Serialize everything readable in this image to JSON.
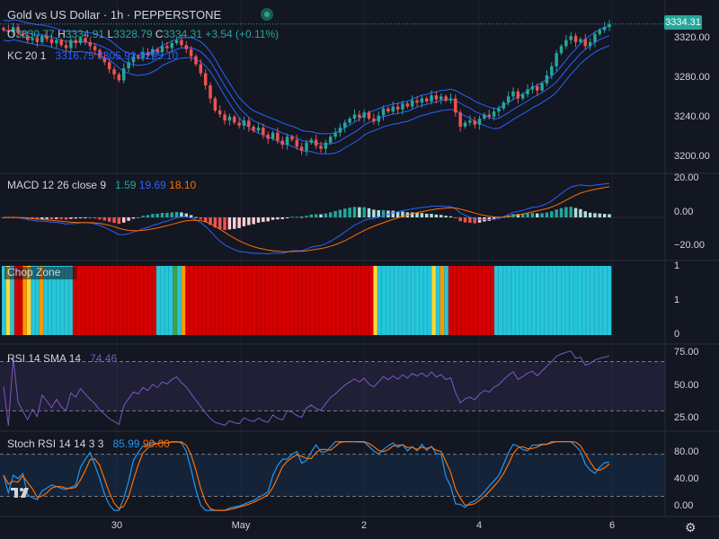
{
  "header": {
    "title": "Gold vs US Dollar · 1h · PEPPERSTONE",
    "last_price": "3334.31"
  },
  "ohlc": {
    "o_label": "O",
    "o": "3330.77",
    "h_label": "H",
    "h": "3334.91",
    "l_label": "L",
    "l": "3328.79",
    "c_label": "C",
    "c": "3334.31",
    "change": "+3.54 (+0.11%)"
  },
  "kc": {
    "name": "KC",
    "params": "20 1",
    "upper": "3316.75",
    "basis": "3305.92",
    "lower": "3295.10"
  },
  "macd": {
    "name": "MACD",
    "params": "12 26 close 9",
    "hist": "1.59",
    "macd": "19.69",
    "signal": "18.10"
  },
  "chop": {
    "name": "Chop Zone"
  },
  "rsi": {
    "name": "RSI",
    "params": "14 SMA 14",
    "value": "74.46"
  },
  "stoch": {
    "name": "Stoch RSI",
    "params": "14 14 3 3",
    "k": "85.99",
    "d": "90.00"
  },
  "price_axis": [
    "3320.00",
    "3280.00",
    "3240.00",
    "3200.00"
  ],
  "macd_axis": [
    "20.00",
    "0.00",
    "−20.00"
  ],
  "chop_axis": [
    "1",
    "1",
    "0"
  ],
  "rsi_axis": [
    "75.00",
    "50.00",
    "25.00"
  ],
  "stoch_axis": [
    "80.00",
    "40.00",
    "0.00"
  ],
  "time_axis": [
    "30",
    "May",
    "2",
    "4",
    "6"
  ],
  "colors": {
    "up": "#26a69a",
    "down": "#ef5350",
    "kc": "#2962ff",
    "macd": "#2962ff",
    "signal": "#ff6d00",
    "rsi": "#7e57c2",
    "stoch_k": "#2196f3",
    "stoch_d": "#ff6d00",
    "chop_turq": "#26c6da",
    "chop_red": "#d50000",
    "chop_yellow": "#fdd835",
    "chop_orange": "#ff9800",
    "chop_green": "#43a047"
  },
  "chart_data": [
    {
      "type": "candlestick",
      "title": "Gold vs US Dollar · 1h · PEPPERSTONE",
      "ylim": [
        3190,
        3340
      ],
      "x": [
        "30",
        "May",
        "2",
        "4",
        "6"
      ],
      "closes": [
        3328,
        3326,
        3331,
        3325,
        3322,
        3318,
        3320,
        3316,
        3322,
        3319,
        3315,
        3318,
        3313,
        3310,
        3318,
        3315,
        3320,
        3316,
        3312,
        3308,
        3301,
        3296,
        3289,
        3284,
        3278,
        3290,
        3296,
        3302,
        3300,
        3306,
        3303,
        3309,
        3306,
        3312,
        3310,
        3315,
        3318,
        3313,
        3309,
        3302,
        3294,
        3285,
        3273,
        3260,
        3248,
        3244,
        3238,
        3242,
        3236,
        3233,
        3238,
        3232,
        3228,
        3231,
        3224,
        3220,
        3226,
        3218,
        3214,
        3222,
        3219,
        3212,
        3208,
        3216,
        3219,
        3213,
        3210,
        3216,
        3222,
        3226,
        3231,
        3236,
        3240,
        3244,
        3241,
        3246,
        3240,
        3237,
        3243,
        3250,
        3247,
        3252,
        3249,
        3255,
        3252,
        3258,
        3256,
        3260,
        3257,
        3263,
        3259,
        3262,
        3258,
        3260,
        3246,
        3232,
        3236,
        3238,
        3234,
        3240,
        3244,
        3242,
        3247,
        3250,
        3256,
        3262,
        3267,
        3260,
        3264,
        3269,
        3272,
        3268,
        3275,
        3283,
        3292,
        3305,
        3312,
        3318,
        3322,
        3316,
        3319,
        3312,
        3316,
        3324,
        3328,
        3331,
        3334
      ],
      "kc_upper": 3316.75,
      "kc_basis": 3305.92,
      "kc_lower": 3295.1
    },
    {
      "type": "line",
      "title": "MACD",
      "ylim": [
        -24,
        24
      ],
      "series": [
        {
          "name": "MACD",
          "last": 19.69
        },
        {
          "name": "Signal",
          "last": 18.1
        }
      ],
      "hist_last": 1.59
    },
    {
      "type": "bar",
      "title": "Chop Zone",
      "ylim": [
        0,
        1
      ],
      "colors": [
        "turq",
        "yellow",
        "turq",
        "red",
        "red",
        "orange",
        "yellow",
        "turq",
        "turq",
        "orange",
        "turq",
        "turq",
        "turq",
        "turq",
        "turq",
        "turq",
        "turq",
        "red",
        "red",
        "red",
        "red",
        "red",
        "red",
        "red",
        "red",
        "red",
        "red",
        "red",
        "red",
        "red",
        "red",
        "red",
        "red",
        "red",
        "red",
        "red",
        "red",
        "turq",
        "turq",
        "turq",
        "turq",
        "green",
        "turq",
        "orange",
        "red",
        "red",
        "red",
        "red",
        "red",
        "red",
        "red",
        "red",
        "red",
        "red",
        "red",
        "red",
        "red",
        "red",
        "red",
        "red",
        "red",
        "red",
        "red",
        "red",
        "red",
        "red",
        "red",
        "red",
        "red",
        "red",
        "red",
        "red",
        "red",
        "red",
        "red",
        "red",
        "red",
        "red",
        "red",
        "red",
        "red",
        "red",
        "red",
        "red",
        "red",
        "red",
        "red",
        "red",
        "red",
        "yellow",
        "turq",
        "turq",
        "turq",
        "turq",
        "turq",
        "turq",
        "turq",
        "turq",
        "turq",
        "turq",
        "turq",
        "turq",
        "turq",
        "yellow",
        "turq",
        "orange",
        "turq",
        "red",
        "red",
        "red",
        "red",
        "red",
        "red",
        "red",
        "red",
        "red",
        "red",
        "red",
        "turq",
        "turq",
        "turq",
        "turq",
        "turq",
        "turq",
        "turq",
        "turq",
        "turq",
        "turq",
        "turq",
        "turq",
        "turq",
        "turq",
        "turq",
        "turq",
        "turq",
        "turq",
        "turq",
        "turq",
        "turq",
        "turq",
        "turq",
        "turq",
        "turq",
        "turq",
        "turq",
        "turq"
      ]
    },
    {
      "type": "line",
      "title": "RSI",
      "ylim": [
        15,
        82
      ],
      "levels": [
        70,
        30
      ],
      "series": [
        {
          "name": "RSI",
          "last": 74.46
        }
      ]
    },
    {
      "type": "line",
      "title": "Stoch RSI",
      "ylim": [
        -5,
        100
      ],
      "levels": [
        80,
        20
      ],
      "series": [
        {
          "name": "K",
          "last": 85.99
        },
        {
          "name": "D",
          "last": 90.0
        }
      ]
    }
  ]
}
